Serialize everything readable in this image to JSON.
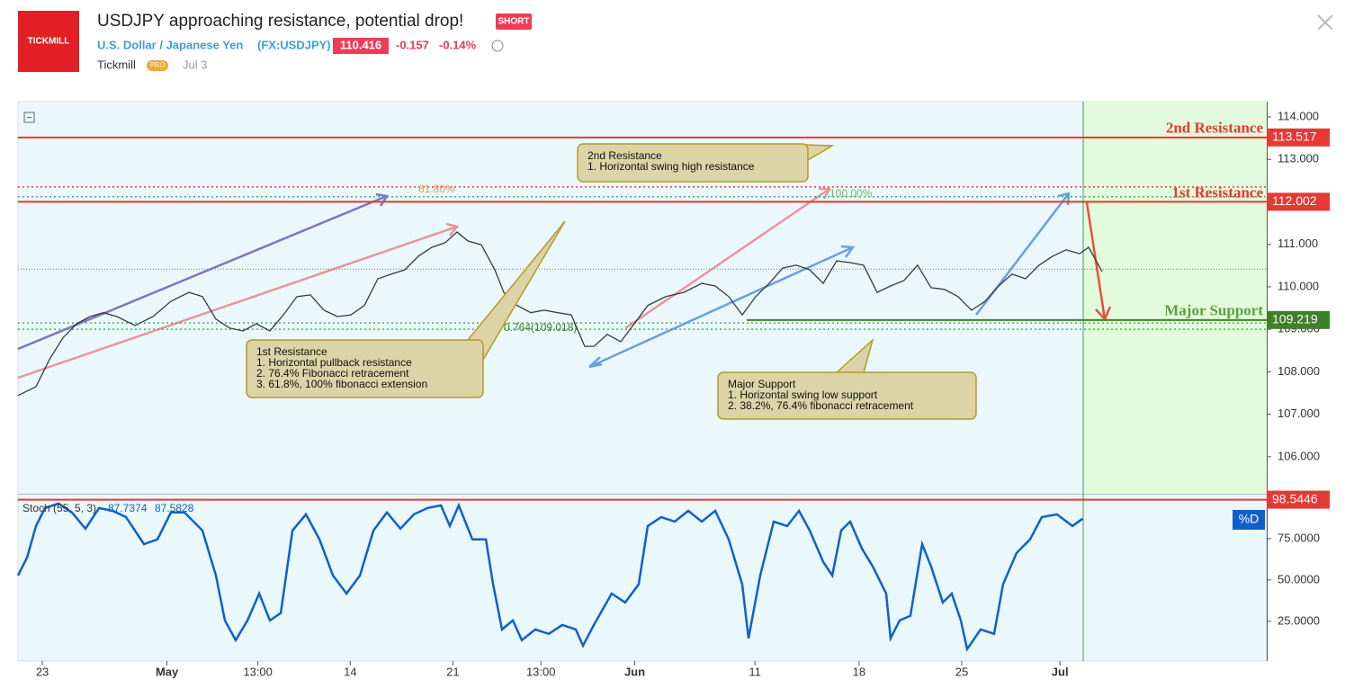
{
  "header": {
    "logo": "TICKMILL",
    "title": "USDJPY approaching resistance, potential drop!",
    "badge": "SHORT",
    "symbol": "U.S. Dollar / Japanese Yen",
    "ticker": "(FX:USDJPY)",
    "price": "110.416",
    "change": "-0.157",
    "change_pct": "-0.14%",
    "author": "Tickmill",
    "author_badge": "PRO",
    "date": "Jul 3"
  },
  "chart_data": [
    {
      "type": "line",
      "color": "#3a3a3a",
      "x": [
        -1.66,
        -0.43,
        0.49,
        1.41,
        2.33,
        3.25,
        4.17,
        5.09,
        6.32,
        7.55,
        8.77,
        10.0,
        10.92,
        11.84,
        12.76,
        13.68,
        14.6,
        15.52,
        16.44,
        17.36,
        18.28,
        19.2,
        20.12,
        21.04,
        21.96,
        22.88,
        23.8,
        24.72,
        25.64,
        26.56,
        27.48,
        28.28,
        29.02,
        29.94,
        30.86,
        31.47,
        32.39,
        33.31,
        34.23,
        35.15,
        36.07,
        36.99,
        37.61,
        38.53,
        39.45,
        40.37,
        41.29,
        42.52,
        43.74,
        44.97,
        45.89,
        46.81,
        47.73,
        48.65,
        49.57,
        50.49,
        51.41,
        52.33,
        53.25,
        54.17,
        55.09,
        56.01,
        56.93,
        57.85,
        58.77,
        59.69,
        60.61,
        61.53,
        62.45,
        63.37,
        64.29,
        65.21,
        66.13,
        67.06,
        67.98,
        68.9,
        69.82,
        70.74,
        71.35,
        72.27
      ],
      "values": [
        107.44,
        107.65,
        108.29,
        108.8,
        109.13,
        109.3,
        109.39,
        109.3,
        109.09,
        109.3,
        109.66,
        109.87,
        109.77,
        109.24,
        109.03,
        108.96,
        109.13,
        108.96,
        109.34,
        109.77,
        109.81,
        109.45,
        109.3,
        109.34,
        109.56,
        110.19,
        110.3,
        110.4,
        110.72,
        110.93,
        111.04,
        111.29,
        111.08,
        110.99,
        110.4,
        109.87,
        109.56,
        109.39,
        109.45,
        109.39,
        109.34,
        108.6,
        108.6,
        108.88,
        108.71,
        109.13,
        109.56,
        109.77,
        109.87,
        110.08,
        110.02,
        109.77,
        109.34,
        109.77,
        110.08,
        110.44,
        110.51,
        110.4,
        110.08,
        110.61,
        110.57,
        110.51,
        109.87,
        110.02,
        110.15,
        110.51,
        109.98,
        109.94,
        109.77,
        109.45,
        109.66,
        110.02,
        110.3,
        110.19,
        110.51,
        110.72,
        110.87,
        110.78,
        110.93,
        110.36
      ],
      "xlim": [
        -1.66,
        83.5
      ],
      "xticks": [
        {
          "value": 0,
          "label": "23"
        },
        {
          "value": 8.5,
          "label": "May"
        },
        {
          "value": 14.7,
          "label": "13:00"
        },
        {
          "value": 21.0,
          "label": "14"
        },
        {
          "value": 28.0,
          "label": "21"
        },
        {
          "value": 34.0,
          "label": "13:00"
        },
        {
          "value": 40.4,
          "label": "Jun"
        },
        {
          "value": 48.6,
          "label": "11"
        },
        {
          "value": 55.7,
          "label": "18"
        },
        {
          "value": 62.7,
          "label": "25"
        },
        {
          "value": 69.4,
          "label": "Jul"
        }
      ],
      "ylim": [
        105.15,
        114.36
      ],
      "yticks": [
        {
          "value": 114,
          "label": "114.000"
        },
        {
          "value": 113,
          "label": "113.000"
        },
        {
          "value": 111,
          "label": "111.000"
        },
        {
          "value": 110,
          "label": "110.000"
        },
        {
          "value": 109,
          "label": "109.000"
        },
        {
          "value": 108,
          "label": "108.000"
        },
        {
          "value": 107,
          "label": "107.000"
        },
        {
          "value": 106,
          "label": "106.000"
        }
      ],
      "levels": [
        {
          "name": "2nd Resistance",
          "value": 113.517,
          "color": "#e53935"
        },
        {
          "name": "1st Resistance",
          "value": 112.002,
          "color": "#e53935"
        },
        {
          "name": "Major Support",
          "value": 109.219,
          "color": "#3f7f2a"
        }
      ],
      "fib_lines": [
        {
          "value": 112.35,
          "color": "#e53935"
        },
        {
          "value": 112.12,
          "color": "#4caf50"
        },
        {
          "value": 109.15,
          "color": "#4caf50"
        },
        {
          "value": 109.0,
          "color": "#4caf50"
        }
      ],
      "annotations": [
        "61.80%",
        "100.00%",
        "0.764(109.018)"
      ],
      "callouts": [
        [
          "2nd Resistance",
          "1. Horizontal swing high resistance"
        ],
        [
          "1st Resistance",
          "1. Horizontal pullback resistance",
          "2. 76.4% Fibonacci retracement",
          "3. 61.8%, 100% fibonacci extension"
        ],
        [
          "Major Support",
          "1. Horizontal swing low support",
          "2. 38.2%, 76.4% fibonacci retracement"
        ]
      ]
    },
    {
      "type": "line",
      "title": "Stoch (55, 5, 3)",
      "legend_values": [
        "87.7374",
        "87.5828"
      ],
      "series_label": "%D",
      "color": "#1160c8",
      "x": [
        -1.66,
        -1.04,
        -0.43,
        0.18,
        1.1,
        2.02,
        2.94,
        3.87,
        4.79,
        5.71,
        6.93,
        7.85,
        8.77,
        9.69,
        10.92,
        11.84,
        12.45,
        13.19,
        13.99,
        14.79,
        15.52,
        16.26,
        17.06,
        17.98,
        18.9,
        19.82,
        20.74,
        21.66,
        22.58,
        23.5,
        24.42,
        25.34,
        26.26,
        27.18,
        27.79,
        28.4,
        29.33,
        30.25,
        30.74,
        31.35,
        32.09,
        32.7,
        33.62,
        34.54,
        35.46,
        36.38,
        36.87,
        37.61,
        38.83,
        39.75,
        40.67,
        41.29,
        42.21,
        43.13,
        44.05,
        44.97,
        45.89,
        46.81,
        47.73,
        48.16,
        48.96,
        49.88,
        50.8,
        51.6,
        52.33,
        53.25,
        53.87,
        54.48,
        55.09,
        55.89,
        56.63,
        57.55,
        57.85,
        58.47,
        59.2,
        60.0,
        60.61,
        61.41,
        62.02,
        62.64,
        63.07,
        63.99,
        64.91,
        65.52,
        66.44,
        67.36,
        68.16,
        69.2,
        70.25,
        70.94
      ],
      "values": [
        52.7,
        63.6,
        82.6,
        93.5,
        96.2,
        90.8,
        81,
        93.5,
        91.8,
        88,
        71.7,
        74.5,
        90.8,
        90.8,
        79.9,
        52.7,
        25.5,
        13.6,
        25.5,
        41.8,
        25.5,
        30,
        79.9,
        89.7,
        74.5,
        52.7,
        41.8,
        52.7,
        79.9,
        90.8,
        81,
        89.7,
        93.5,
        95.1,
        82.6,
        95.1,
        74.5,
        74.5,
        47.3,
        20.1,
        25.5,
        13.6,
        20.1,
        17.4,
        22.8,
        20.1,
        10.3,
        22.8,
        41.8,
        36.4,
        47.3,
        82.6,
        88,
        85.3,
        91.8,
        85.3,
        91.8,
        74.5,
        47.3,
        14.7,
        52.7,
        85.3,
        82.6,
        91.8,
        79.9,
        60.9,
        52.7,
        79.9,
        85.3,
        69,
        58.2,
        41.8,
        14.7,
        25.5,
        28.3,
        71.7,
        58.2,
        36.4,
        41.8,
        25.5,
        8.2,
        20.1,
        17.4,
        47.3,
        66.3,
        74.5,
        88,
        89.7,
        82.6,
        87
      ],
      "ylim": [
        1,
        100.5
      ],
      "yticks": [
        {
          "value": 75,
          "label": "75.0000"
        },
        {
          "value": 50,
          "label": "50.0000"
        },
        {
          "value": 25,
          "label": "25.0000"
        }
      ],
      "levels": [
        {
          "value": 98.5446,
          "color": "#e53935"
        }
      ]
    }
  ]
}
